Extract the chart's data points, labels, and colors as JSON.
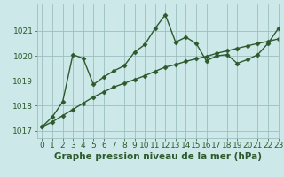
{
  "title": "Graphe pression niveau de la mer (hPa)",
  "background_color": "#cce8e8",
  "plot_bg_color": "#cce8e8",
  "line_color": "#2d5a2d",
  "grid_color": "#9dbfbf",
  "xlim": [
    -0.5,
    23
  ],
  "ylim": [
    1016.7,
    1022.1
  ],
  "yticks": [
    1017,
    1018,
    1019,
    1020,
    1021
  ],
  "xticks": [
    0,
    1,
    2,
    3,
    4,
    5,
    6,
    7,
    8,
    9,
    10,
    11,
    12,
    13,
    14,
    15,
    16,
    17,
    18,
    19,
    20,
    21,
    22,
    23
  ],
  "series1_x": [
    0,
    1,
    2,
    3,
    4,
    5,
    6,
    7,
    8,
    9,
    10,
    11,
    12,
    13,
    14,
    15,
    16,
    17,
    18,
    19,
    20,
    21,
    22,
    23
  ],
  "series1_y": [
    1017.15,
    1017.55,
    1018.15,
    1020.05,
    1019.9,
    1018.85,
    1019.15,
    1019.4,
    1019.6,
    1020.15,
    1020.45,
    1021.1,
    1021.65,
    1020.55,
    1020.75,
    1020.5,
    1019.8,
    1020.0,
    1020.05,
    1019.7,
    1019.85,
    1020.05,
    1020.5,
    1021.1
  ],
  "series2_x": [
    0,
    1,
    2,
    3,
    4,
    5,
    6,
    7,
    8,
    9,
    10,
    11,
    12,
    13,
    14,
    15,
    16,
    17,
    18,
    19,
    20,
    21,
    22,
    23
  ],
  "series2_y": [
    1017.15,
    1017.35,
    1017.6,
    1017.85,
    1018.1,
    1018.35,
    1018.55,
    1018.75,
    1018.9,
    1019.05,
    1019.2,
    1019.38,
    1019.55,
    1019.65,
    1019.78,
    1019.88,
    1019.98,
    1020.1,
    1020.2,
    1020.3,
    1020.4,
    1020.5,
    1020.58,
    1020.68
  ],
  "marker": "D",
  "marker_size": 2.5,
  "linewidth": 1.0,
  "tick_fontsize": 6.5,
  "title_fontsize": 7.5
}
